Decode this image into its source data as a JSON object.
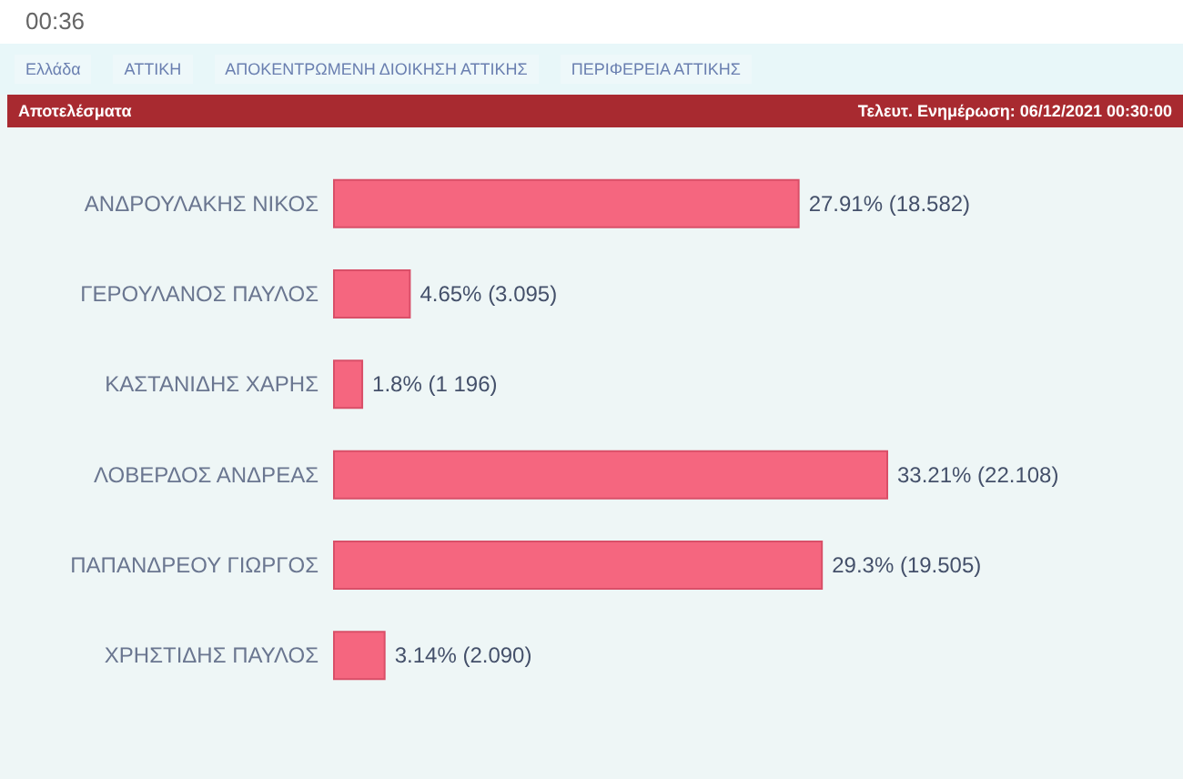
{
  "chart_data": {
    "type": "bar",
    "orientation": "horizontal",
    "title": "Αποτελέσματα",
    "subtitle": "Τελευτ. Ενημέρωση: 06/12/2021 00:30:00",
    "annotations": [
      "00:36",
      "Ελλάδα",
      "ΑΤΤΙΚΗ",
      "ΑΠΟΚΕΝΤΡΩΜΕΝΗ ΔΙΟΙΚΗΣΗ ΑΤΤΙΚΗΣ",
      "ΠΕΡΙΦΕΡΕΙΑ ΑΤΤΙΚΗΣ"
    ],
    "categories": [
      "ΑΝΔΡΟΥΛΑΚΗΣ ΝΙΚΟΣ",
      "ΓΕΡΟΥΛΑΝΟΣ ΠΑΥΛΟΣ",
      "ΚΑΣΤΑΝΙΔΗΣ ΧΑΡΗΣ",
      "ΛΟΒΕΡΔΟΣ ΑΝΔΡΕΑΣ",
      "ΠΑΠΑΝΔΡΕΟΥ ΓΙΩΡΓΟΣ",
      "ΧΡΗΣΤΙΔΗΣ ΠΑΥΛΟΣ"
    ],
    "values": [
      27.91,
      4.65,
      1.8,
      33.21,
      29.3,
      3.14
    ],
    "value_labels": [
      "27.91% (18.582)",
      "4.65% (3.095)",
      "1.8% (1 196)",
      "33.21% (22.108)",
      "29.3% (19.505)",
      "3.14% (2.090)"
    ],
    "color": "#f5667f"
  }
}
